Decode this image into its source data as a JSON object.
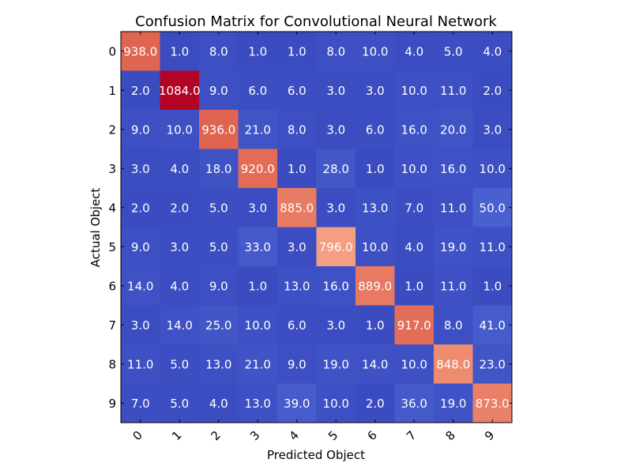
{
  "chart_data": {
    "type": "heatmap",
    "title": "Confusion Matrix for Convolutional Neural Network",
    "xlabel": "Predicted Object",
    "ylabel": "Actual Object",
    "x_categories": [
      "0",
      "1",
      "2",
      "3",
      "4",
      "5",
      "6",
      "7",
      "8",
      "9"
    ],
    "y_categories": [
      "0",
      "1",
      "2",
      "3",
      "4",
      "5",
      "6",
      "7",
      "8",
      "9"
    ],
    "values": [
      [
        938.0,
        1.0,
        8.0,
        1.0,
        1.0,
        8.0,
        10.0,
        4.0,
        5.0,
        4.0
      ],
      [
        2.0,
        1084.0,
        9.0,
        6.0,
        6.0,
        3.0,
        3.0,
        10.0,
        11.0,
        2.0
      ],
      [
        9.0,
        10.0,
        936.0,
        21.0,
        8.0,
        3.0,
        6.0,
        16.0,
        20.0,
        3.0
      ],
      [
        3.0,
        4.0,
        18.0,
        920.0,
        1.0,
        28.0,
        1.0,
        10.0,
        16.0,
        10.0
      ],
      [
        2.0,
        2.0,
        5.0,
        3.0,
        885.0,
        3.0,
        13.0,
        7.0,
        11.0,
        50.0
      ],
      [
        9.0,
        3.0,
        5.0,
        33.0,
        3.0,
        796.0,
        10.0,
        4.0,
        19.0,
        11.0
      ],
      [
        14.0,
        4.0,
        9.0,
        1.0,
        13.0,
        16.0,
        889.0,
        1.0,
        11.0,
        1.0
      ],
      [
        3.0,
        14.0,
        25.0,
        10.0,
        6.0,
        3.0,
        1.0,
        917.0,
        8.0,
        41.0
      ],
      [
        11.0,
        5.0,
        13.0,
        21.0,
        9.0,
        19.0,
        14.0,
        10.0,
        848.0,
        23.0
      ],
      [
        7.0,
        5.0,
        4.0,
        13.0,
        39.0,
        10.0,
        2.0,
        36.0,
        19.0,
        873.0
      ]
    ],
    "colormap": "coolwarm",
    "value_format": "one-decimal",
    "x_tick_rotation_deg": 45,
    "grid": false
  }
}
